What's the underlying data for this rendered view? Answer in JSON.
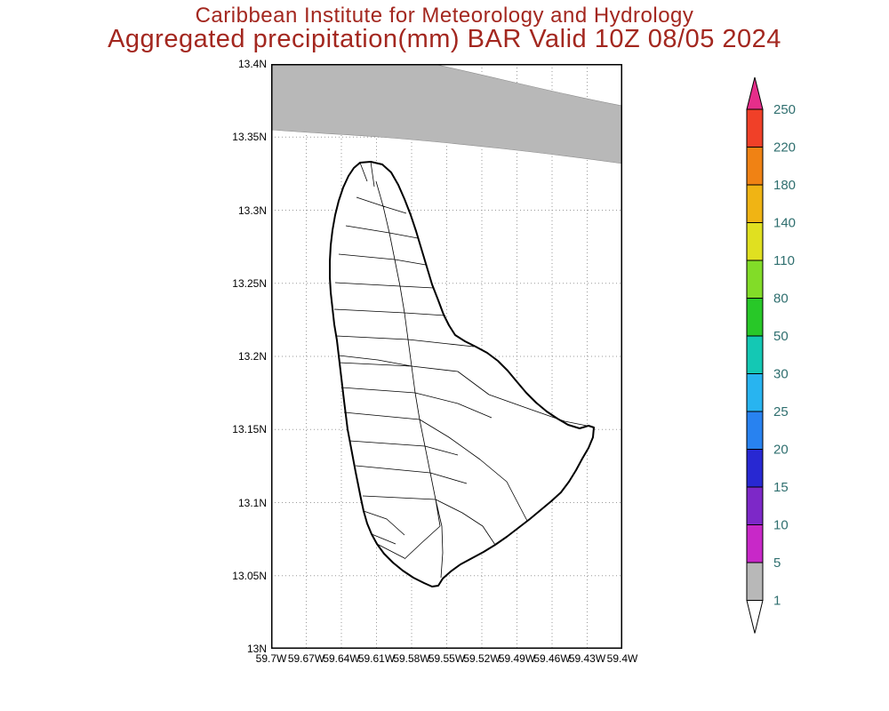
{
  "header": {
    "title_line1": "Caribbean Institute for Meteorology and Hydrology",
    "title_line2": "Aggregated precipitation(mm) BAR Valid 10Z 08/05 2024",
    "title_color": "#a3271f"
  },
  "map": {
    "y_ticks": [
      "13.4N",
      "13.35N",
      "13.3N",
      "13.25N",
      "13.2N",
      "13.15N",
      "13.1N",
      "13.05N",
      "13N"
    ],
    "x_ticks": [
      "59.7W",
      "59.67W",
      "59.64W",
      "59.61W",
      "59.58W",
      "59.55W",
      "59.52W",
      "59.49W",
      "59.46W",
      "59.43W",
      "59.4W"
    ],
    "shaded_region": {
      "value_range_mm": "1-5",
      "color": "#b8b8b8"
    }
  },
  "colorbar": {
    "levels": [
      1,
      5,
      10,
      15,
      20,
      25,
      30,
      50,
      80,
      110,
      140,
      180,
      220,
      250
    ],
    "segments_bottom_to_top": [
      {
        "range": "<1",
        "color": "#ffffff"
      },
      {
        "range": "1-5",
        "color": "#b8b8b8"
      },
      {
        "range": "5-10",
        "color": "#c828c8"
      },
      {
        "range": "10-15",
        "color": "#7d28c8"
      },
      {
        "range": "15-20",
        "color": "#2828d2"
      },
      {
        "range": "20-25",
        "color": "#2882f0"
      },
      {
        "range": "25-30",
        "color": "#28b4f0"
      },
      {
        "range": "30-50",
        "color": "#14c8b4"
      },
      {
        "range": "50-80",
        "color": "#28c828"
      },
      {
        "range": "80-110",
        "color": "#82dc28"
      },
      {
        "range": "110-140",
        "color": "#e0e020"
      },
      {
        "range": "140-180",
        "color": "#f0b414"
      },
      {
        "range": "180-220",
        "color": "#f08214"
      },
      {
        "range": "220-250",
        "color": "#f04028"
      },
      {
        "range": ">250",
        "color": "#e62e8a"
      }
    ],
    "label_color": "#2f6f6f"
  }
}
